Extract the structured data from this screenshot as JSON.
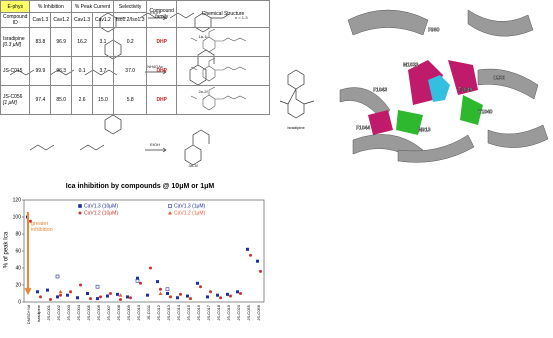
{
  "scheme": {
    "reagents": [
      "EtOH",
      "NH4OAc",
      "EtOH"
    ],
    "products": [
      "1a-1i",
      "2a-2f",
      "3a-3f"
    ],
    "note": "n = 1-3"
  },
  "structure": {
    "ligand": "Isradipine",
    "residues": [
      "F960",
      "M1033",
      "C920",
      "F1043",
      "Y1040",
      "F1044",
      "M913",
      "T1039"
    ]
  },
  "chart_data": {
    "type": "scatter",
    "title": "Ica inhibition by compounds @ 10μM or 1μM",
    "y_label": "% of peak Ica",
    "annotation": "greater inhibition",
    "annotation_color": "#e8893a",
    "categories": [
      "DMSO+Nif",
      "Isradipine",
      "JS-C001",
      "JS-C002",
      "JS-C003",
      "JS-C004",
      "JS-C005",
      "JS-C006",
      "JS-C007",
      "JS-C008",
      "JS-C009",
      "JS-C010",
      "JS-C011",
      "JS-C012",
      "JS-C013",
      "JS-C014",
      "JS-C015",
      "JS-C016",
      "JS-C017",
      "JS-C018",
      "JS-C019",
      "JS-C020",
      "JS-C055",
      "JS-C056"
    ],
    "series": [
      {
        "name": "CaV1.3 (10μM)",
        "color": "#1f2f9e",
        "marker": "square",
        "values": [
          100,
          12,
          14,
          6,
          8,
          5,
          10,
          4,
          7,
          9,
          6,
          28,
          8,
          24,
          10,
          5,
          7,
          22,
          6,
          8,
          9,
          12,
          62,
          48
        ]
      },
      {
        "name": "CaV1.2 (10μM)",
        "color": "#d03030",
        "marker": "circle",
        "values": [
          95,
          6,
          3,
          8,
          12,
          20,
          4,
          6,
          10,
          3,
          5,
          22,
          40,
          15,
          6,
          9,
          4,
          18,
          12,
          5,
          7,
          10,
          55,
          36
        ]
      },
      {
        "name": "CaV1.3 (1μM)",
        "color": "#1f2f9e",
        "marker": "open-square",
        "values": [
          null,
          null,
          null,
          30,
          null,
          null,
          null,
          18,
          null,
          null,
          null,
          25,
          null,
          null,
          15,
          null,
          null,
          null,
          null,
          null,
          null,
          null,
          null,
          null
        ]
      },
      {
        "name": "CaV1.2 (1μM)",
        "color": "#e0603a",
        "marker": "triangle",
        "values": [
          null,
          null,
          null,
          12,
          null,
          null,
          null,
          null,
          null,
          8,
          null,
          null,
          null,
          10,
          null,
          null,
          null,
          null,
          null,
          null,
          null,
          null,
          null,
          null
        ]
      }
    ],
    "ylim": [
      0,
      120
    ],
    "yticks": [
      0,
      20,
      40,
      60,
      80,
      100,
      120
    ]
  },
  "table": {
    "header": [
      "E-phys",
      "% Inhibition",
      "% Peak Current",
      "Selectivity",
      "Compound family",
      "Chemical Structure"
    ],
    "subheader": [
      "Compound ID",
      "Cav1.3",
      "Cav1.2",
      "Cav1.3",
      "Cav1.2",
      "Iso1.2/Iso1.3"
    ],
    "rows": [
      [
        "Isradipine",
        "[0.3 μM]",
        "83.8",
        "96.9",
        "16.2",
        "3.1",
        "0.2",
        "DHP"
      ],
      [
        "JS-C015",
        "",
        "99.9",
        "96.3",
        "0.1",
        "3.7",
        "37.0",
        "DHP"
      ],
      [
        "JS-C056",
        "[1 μM]",
        "97.4",
        "85.0",
        "2.6",
        "15.0",
        "5.8",
        "DHP"
      ]
    ]
  }
}
